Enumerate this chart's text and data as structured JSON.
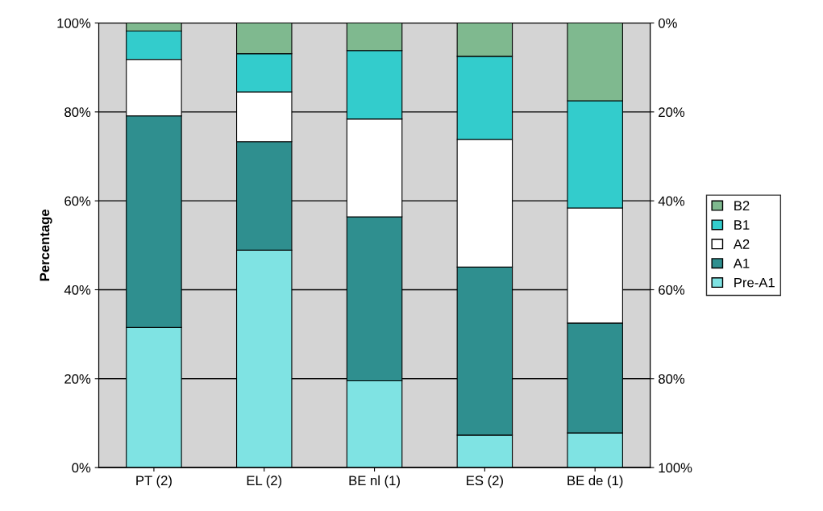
{
  "chart_data": {
    "type": "bar",
    "stacked": true,
    "ylabel": "Percentage",
    "categories": [
      "PT (2)",
      "EL (2)",
      "BE nl (1)",
      "ES (2)",
      "BE de (1)"
    ],
    "series": [
      {
        "name": "Pre-A1",
        "color": "#7fe3e3",
        "values": [
          31.5,
          48.9,
          19.5,
          7.3,
          7.8
        ]
      },
      {
        "name": "A1",
        "color": "#2f8f8f",
        "values": [
          47.6,
          24.4,
          36.9,
          37.8,
          24.7
        ]
      },
      {
        "name": "A2",
        "color": "#ffffff",
        "values": [
          12.7,
          11.2,
          22.0,
          28.7,
          25.9
        ]
      },
      {
        "name": "B1",
        "color": "#33cccc",
        "values": [
          6.4,
          8.6,
          15.4,
          18.7,
          24.1
        ]
      },
      {
        "name": "B2",
        "color": "#7fb98f",
        "values": [
          1.8,
          6.9,
          6.2,
          7.5,
          17.5
        ]
      }
    ],
    "ylim": [
      0,
      100
    ],
    "yticks": [
      {
        "value": 0,
        "label": "0%"
      },
      {
        "value": 20,
        "label": "20%"
      },
      {
        "value": 40,
        "label": "40%"
      },
      {
        "value": 60,
        "label": "60%"
      },
      {
        "value": 80,
        "label": "80%"
      },
      {
        "value": 100,
        "label": "100%"
      }
    ],
    "y2lim": [
      100,
      0
    ],
    "y2ticks": [
      {
        "value": 0,
        "label": "0%"
      },
      {
        "value": 20,
        "label": "20%"
      },
      {
        "value": 40,
        "label": "40%"
      },
      {
        "value": 60,
        "label": "60%"
      },
      {
        "value": 80,
        "label": "80%"
      },
      {
        "value": 100,
        "label": "100%"
      }
    ],
    "grid": "y",
    "legend": "right"
  }
}
